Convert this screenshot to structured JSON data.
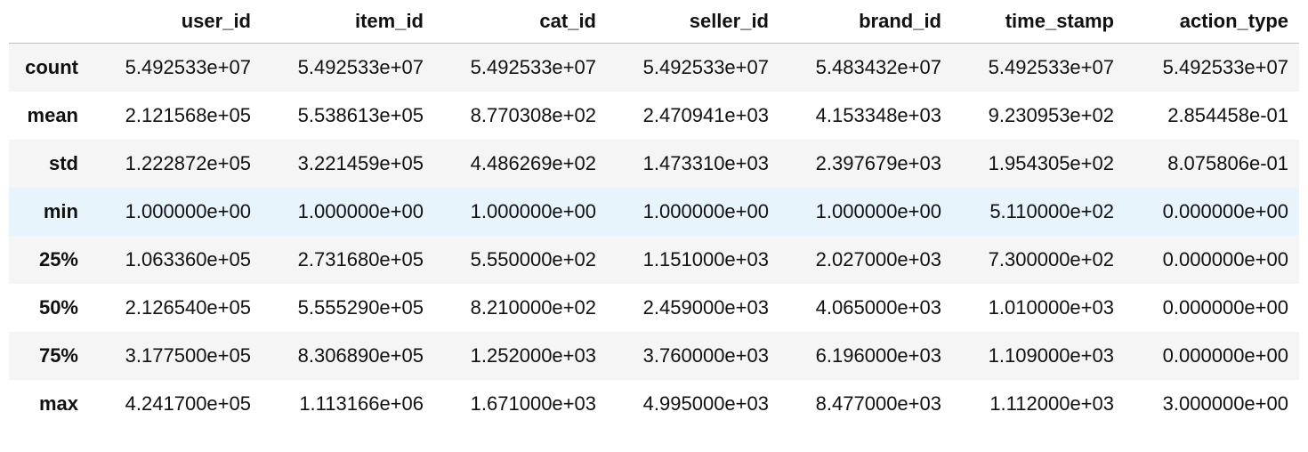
{
  "table": {
    "index_header": "",
    "columns": [
      "user_id",
      "item_id",
      "cat_id",
      "seller_id",
      "brand_id",
      "time_stamp",
      "action_type"
    ],
    "hovered_row": 3,
    "rows": [
      {
        "label": "count",
        "values": [
          "5.492533e+07",
          "5.492533e+07",
          "5.492533e+07",
          "5.492533e+07",
          "5.483432e+07",
          "5.492533e+07",
          "5.492533e+07"
        ]
      },
      {
        "label": "mean",
        "values": [
          "2.121568e+05",
          "5.538613e+05",
          "8.770308e+02",
          "2.470941e+03",
          "4.153348e+03",
          "9.230953e+02",
          "2.854458e-01"
        ]
      },
      {
        "label": "std",
        "values": [
          "1.222872e+05",
          "3.221459e+05",
          "4.486269e+02",
          "1.473310e+03",
          "2.397679e+03",
          "1.954305e+02",
          "8.075806e-01"
        ]
      },
      {
        "label": "min",
        "values": [
          "1.000000e+00",
          "1.000000e+00",
          "1.000000e+00",
          "1.000000e+00",
          "1.000000e+00",
          "5.110000e+02",
          "0.000000e+00"
        ]
      },
      {
        "label": "25%",
        "values": [
          "1.063360e+05",
          "2.731680e+05",
          "5.550000e+02",
          "1.151000e+03",
          "2.027000e+03",
          "7.300000e+02",
          "0.000000e+00"
        ]
      },
      {
        "label": "50%",
        "values": [
          "2.126540e+05",
          "5.555290e+05",
          "8.210000e+02",
          "2.459000e+03",
          "4.065000e+03",
          "1.010000e+03",
          "0.000000e+00"
        ]
      },
      {
        "label": "75%",
        "values": [
          "3.177500e+05",
          "8.306890e+05",
          "1.252000e+03",
          "3.760000e+03",
          "6.196000e+03",
          "1.109000e+03",
          "0.000000e+00"
        ]
      },
      {
        "label": "max",
        "values": [
          "4.241700e+05",
          "1.113166e+06",
          "1.671000e+03",
          "4.995000e+03",
          "8.477000e+03",
          "1.112000e+03",
          "3.000000e+00"
        ]
      }
    ]
  },
  "colors": {
    "striped_row": "#f5f5f5",
    "hover_row": "#e8f4fc",
    "header_border": "#bdbdbd"
  }
}
